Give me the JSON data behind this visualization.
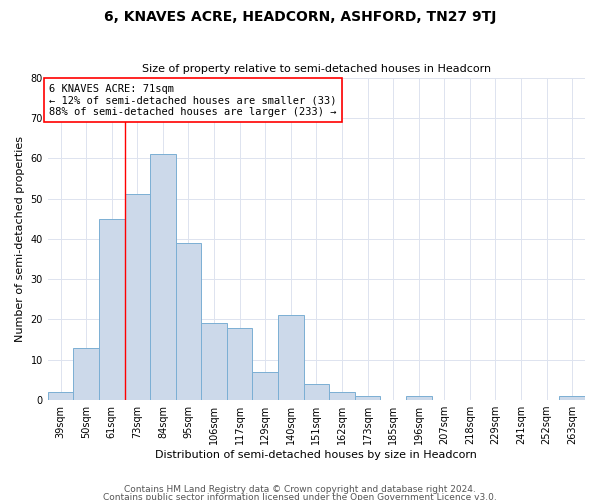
{
  "title": "6, KNAVES ACRE, HEADCORN, ASHFORD, TN27 9TJ",
  "subtitle": "Size of property relative to semi-detached houses in Headcorn",
  "xlabel": "Distribution of semi-detached houses by size in Headcorn",
  "ylabel": "Number of semi-detached properties",
  "annotation_title": "6 KNAVES ACRE: 71sqm",
  "annotation_line1": "← 12% of semi-detached houses are smaller (33)",
  "annotation_line2": "88% of semi-detached houses are larger (233) →",
  "categories": [
    "39sqm",
    "50sqm",
    "61sqm",
    "73sqm",
    "84sqm",
    "95sqm",
    "106sqm",
    "117sqm",
    "129sqm",
    "140sqm",
    "151sqm",
    "162sqm",
    "173sqm",
    "185sqm",
    "196sqm",
    "207sqm",
    "218sqm",
    "229sqm",
    "241sqm",
    "252sqm",
    "263sqm"
  ],
  "values": [
    2,
    13,
    45,
    51,
    61,
    39,
    19,
    18,
    7,
    21,
    4,
    2,
    1,
    0,
    1,
    0,
    0,
    0,
    0,
    0,
    1
  ],
  "bar_color": "#ccd9ea",
  "bar_edge_color": "#7bafd4",
  "red_line_x": 2.5,
  "ylim": [
    0,
    80
  ],
  "yticks": [
    0,
    10,
    20,
    30,
    40,
    50,
    60,
    70,
    80
  ],
  "grid_color": "#dde3ef",
  "footer1": "Contains HM Land Registry data © Crown copyright and database right 2024.",
  "footer2": "Contains public sector information licensed under the Open Government Licence v3.0.",
  "title_fontsize": 10,
  "subtitle_fontsize": 8,
  "axis_label_fontsize": 8,
  "tick_fontsize": 7,
  "footer_fontsize": 6.5
}
